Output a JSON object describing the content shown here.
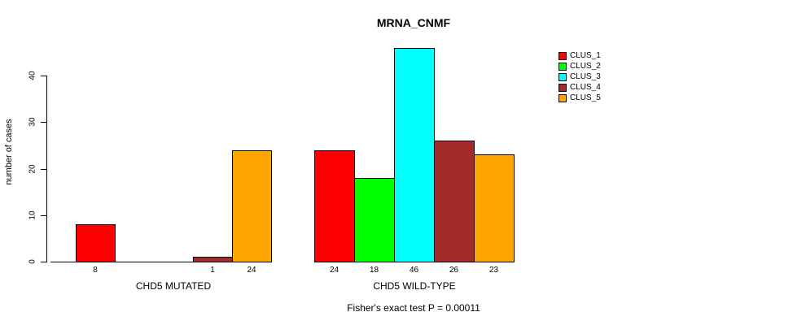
{
  "title": "MRNA_CNMF",
  "y_axis": {
    "label": "number of cases",
    "ticks": [
      0,
      10,
      20,
      30,
      40
    ]
  },
  "footer": "Fisher's exact test P = 0.00011",
  "legend": {
    "position": "top-right",
    "items": [
      {
        "label": "CLUS_1",
        "color": "#FF0000"
      },
      {
        "label": "CLUS_2",
        "color": "#00FF00"
      },
      {
        "label": "CLUS_3",
        "color": "#00FFFF"
      },
      {
        "label": "CLUS_4",
        "color": "#A52A2A"
      },
      {
        "label": "CLUS_5",
        "color": "#FFA500"
      }
    ]
  },
  "chart_data": {
    "type": "bar",
    "title": "MRNA_CNMF",
    "xlabel": "",
    "ylabel": "number of cases",
    "ylim": [
      0,
      46
    ],
    "yticks": [
      0,
      10,
      20,
      30,
      40
    ],
    "grid": false,
    "legend_position": "top-right",
    "groups": [
      "CHD5 MUTATED",
      "CHD5 WILD-TYPE"
    ],
    "series": [
      {
        "name": "CLUS_1",
        "color": "#FF0000",
        "values": [
          8,
          24
        ]
      },
      {
        "name": "CLUS_2",
        "color": "#00FF00",
        "values": [
          0,
          18
        ]
      },
      {
        "name": "CLUS_3",
        "color": "#00FFFF",
        "values": [
          0,
          46
        ]
      },
      {
        "name": "CLUS_4",
        "color": "#A52A2A",
        "values": [
          1,
          26
        ]
      },
      {
        "name": "CLUS_5",
        "color": "#FFA500",
        "values": [
          24,
          23
        ]
      }
    ],
    "bar_value_labels_shown": true,
    "zero_bars_unlabeled": true,
    "annotation": "Fisher's exact test P = 0.00011"
  }
}
